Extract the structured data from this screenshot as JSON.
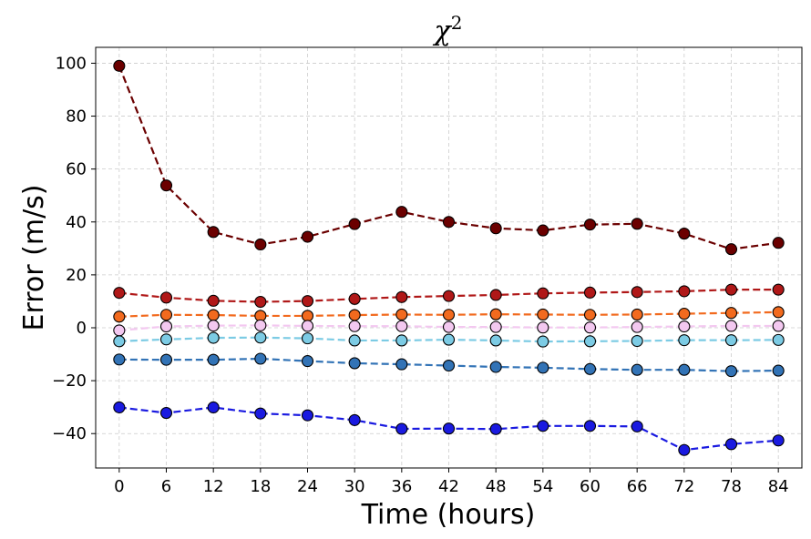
{
  "chart_data": {
    "type": "line",
    "title": "χ2",
    "title_base": "χ",
    "title_sup": "2",
    "xlabel": "Time (hours)",
    "ylabel": "Error (m/s)",
    "x": [
      0,
      6,
      12,
      18,
      24,
      30,
      36,
      42,
      48,
      54,
      60,
      66,
      72,
      78,
      84
    ],
    "xlim": [
      -3,
      87
    ],
    "ylim": [
      -53,
      106
    ],
    "yticks": [
      -40,
      -20,
      0,
      20,
      40,
      60,
      80,
      100
    ],
    "grid": true,
    "line_style": "dashed",
    "marker": "circle",
    "series": [
      {
        "color": "#6b0000",
        "values": [
          99,
          53.8,
          36.2,
          31.5,
          34.4,
          39.2,
          43.8,
          40,
          37.6,
          36.8,
          39,
          39.3,
          35.6,
          29.7,
          32.1
        ]
      },
      {
        "color": "#b01818",
        "values": [
          13.2,
          11.4,
          10.2,
          9.8,
          10.1,
          10.9,
          11.6,
          12,
          12.4,
          13,
          13.3,
          13.5,
          13.8,
          14.4,
          14.4
        ]
      },
      {
        "color": "#f26a1e",
        "values": [
          4.2,
          4.9,
          4.8,
          4.5,
          4.5,
          4.8,
          5,
          4.9,
          5.1,
          5,
          4.9,
          5,
          5.3,
          5.6,
          5.9
        ]
      },
      {
        "color": "#f3c8f0",
        "values": [
          -1,
          0.5,
          0.8,
          0.9,
          0.7,
          0.6,
          0.6,
          0.3,
          0.3,
          0.1,
          0.1,
          0.3,
          0.5,
          0.7,
          0.7
        ]
      },
      {
        "color": "#7ccbe4",
        "values": [
          -5.1,
          -4.4,
          -3.8,
          -3.7,
          -4,
          -4.8,
          -4.8,
          -4.5,
          -4.8,
          -5.2,
          -5.1,
          -5,
          -4.7,
          -4.7,
          -4.6
        ]
      },
      {
        "color": "#3273b6",
        "values": [
          -12,
          -12.1,
          -12.1,
          -11.7,
          -12.6,
          -13.4,
          -13.8,
          -14.3,
          -14.8,
          -15.1,
          -15.6,
          -15.9,
          -15.9,
          -16.4,
          -16.2
        ]
      },
      {
        "color": "#1a1ae0",
        "values": [
          -30.1,
          -32.2,
          -30.1,
          -32.4,
          -33.1,
          -34.9,
          -38.2,
          -38.1,
          -38.3,
          -37.1,
          -37.1,
          -37.3,
          -46.2,
          -44,
          -42.6
        ]
      }
    ]
  }
}
